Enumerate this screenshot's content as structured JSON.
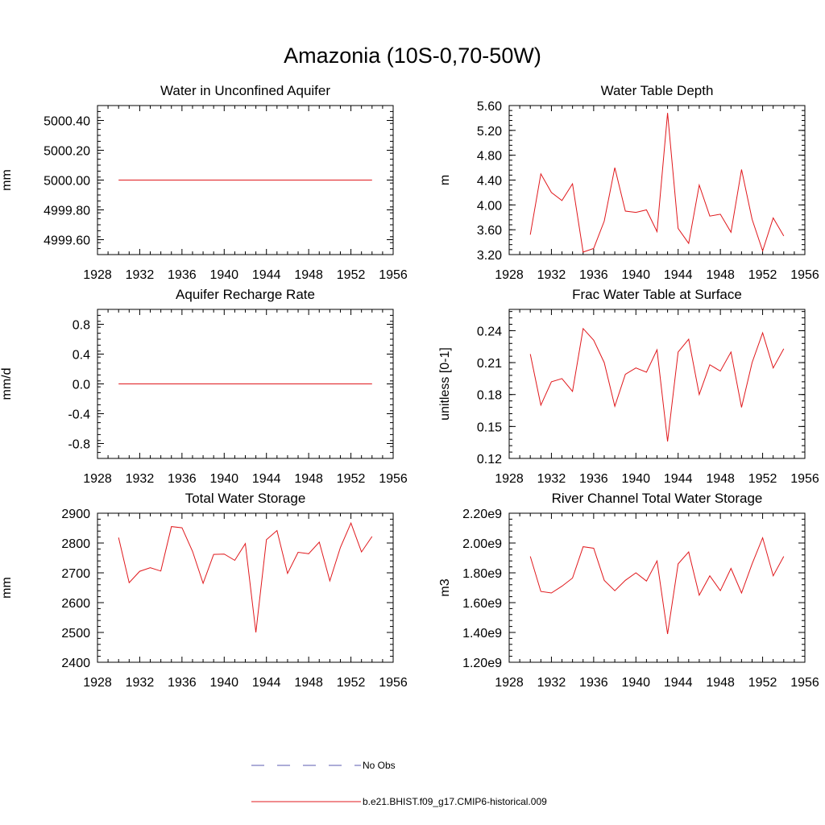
{
  "figure": {
    "title": "Amazonia (10S-0,70-50W)"
  },
  "legend": [
    {
      "label": "No Obs",
      "color": "#5b5bb0",
      "dash": true
    },
    {
      "label": "b.e21.BHIST.f09_g17.CMIP6-historical.009",
      "color": "#e0181c",
      "dash": false
    }
  ],
  "chart_data": [
    {
      "type": "line",
      "title": "Water in Unconfined Aquifer",
      "ylabel": "mm",
      "xlim": [
        1928,
        1956
      ],
      "ylim": [
        4999.5,
        5000.5
      ],
      "xticks": [
        1928,
        1932,
        1936,
        1940,
        1944,
        1948,
        1952,
        1956
      ],
      "yticks": [
        4999.6,
        4999.8,
        5000.0,
        5000.2,
        5000.4
      ],
      "ytick_labels": [
        "4999.60",
        "4999.80",
        "5000.00",
        "5000.20",
        "5000.40"
      ],
      "x": [
        1930,
        1931,
        1932,
        1933,
        1934,
        1935,
        1936,
        1937,
        1938,
        1939,
        1940,
        1941,
        1942,
        1943,
        1944,
        1945,
        1946,
        1947,
        1948,
        1949,
        1950,
        1951,
        1952,
        1953,
        1954
      ],
      "series": [
        {
          "name": "b.e21.BHIST.f09_g17.CMIP6-historical.009",
          "values": [
            5000,
            5000,
            5000,
            5000,
            5000,
            5000,
            5000,
            5000,
            5000,
            5000,
            5000,
            5000,
            5000,
            5000,
            5000,
            5000,
            5000,
            5000,
            5000,
            5000,
            5000,
            5000,
            5000,
            5000,
            5000
          ]
        }
      ]
    },
    {
      "type": "line",
      "title": "Water Table Depth",
      "ylabel": "m",
      "xlim": [
        1928,
        1956
      ],
      "ylim": [
        3.2,
        5.6
      ],
      "xticks": [
        1928,
        1932,
        1936,
        1940,
        1944,
        1948,
        1952,
        1956
      ],
      "yticks": [
        3.2,
        3.6,
        4.0,
        4.4,
        4.8,
        5.2,
        5.6
      ],
      "ytick_labels": [
        "3.20",
        "3.60",
        "4.00",
        "4.40",
        "4.80",
        "5.20",
        "5.60"
      ],
      "x": [
        1930,
        1931,
        1932,
        1933,
        1934,
        1935,
        1936,
        1937,
        1938,
        1939,
        1940,
        1941,
        1942,
        1943,
        1944,
        1945,
        1946,
        1947,
        1948,
        1949,
        1950,
        1951,
        1952,
        1953,
        1954
      ],
      "series": [
        {
          "name": "b.e21.BHIST.f09_g17.CMIP6-historical.009",
          "values": [
            3.52,
            4.5,
            4.2,
            4.07,
            4.34,
            3.24,
            3.3,
            3.74,
            4.6,
            3.9,
            3.88,
            3.92,
            3.57,
            5.48,
            3.62,
            3.38,
            4.32,
            3.82,
            3.85,
            3.56,
            4.57,
            3.77,
            3.26,
            3.79,
            3.5
          ]
        }
      ]
    },
    {
      "type": "line",
      "title": "Aquifer Recharge Rate",
      "ylabel": "mm/d",
      "xlim": [
        1928,
        1956
      ],
      "ylim": [
        -1.0,
        1.0
      ],
      "xticks": [
        1928,
        1932,
        1936,
        1940,
        1944,
        1948,
        1952,
        1956
      ],
      "yticks": [
        -0.8,
        -0.4,
        0.0,
        0.4,
        0.8
      ],
      "ytick_labels": [
        "-0.8",
        "-0.4",
        "0.0",
        "0.4",
        "0.8"
      ],
      "x": [
        1930,
        1931,
        1932,
        1933,
        1934,
        1935,
        1936,
        1937,
        1938,
        1939,
        1940,
        1941,
        1942,
        1943,
        1944,
        1945,
        1946,
        1947,
        1948,
        1949,
        1950,
        1951,
        1952,
        1953,
        1954
      ],
      "series": [
        {
          "name": "b.e21.BHIST.f09_g17.CMIP6-historical.009",
          "values": [
            0,
            0,
            0,
            0,
            0,
            0,
            0,
            0,
            0,
            0,
            0,
            0,
            0,
            0,
            0,
            0,
            0,
            0,
            0,
            0,
            0,
            0,
            0,
            0,
            0
          ]
        }
      ]
    },
    {
      "type": "line",
      "title": "Frac Water Table at Surface",
      "ylabel": "unitless [0-1]",
      "xlim": [
        1928,
        1956
      ],
      "ylim": [
        0.12,
        0.26
      ],
      "xticks": [
        1928,
        1932,
        1936,
        1940,
        1944,
        1948,
        1952,
        1956
      ],
      "yticks": [
        0.12,
        0.15,
        0.18,
        0.21,
        0.24
      ],
      "ytick_labels": [
        "0.12",
        "0.15",
        "0.18",
        "0.21",
        "0.24"
      ],
      "x": [
        1930,
        1931,
        1932,
        1933,
        1934,
        1935,
        1936,
        1937,
        1938,
        1939,
        1940,
        1941,
        1942,
        1943,
        1944,
        1945,
        1946,
        1947,
        1948,
        1949,
        1950,
        1951,
        1952,
        1953,
        1954
      ],
      "series": [
        {
          "name": "b.e21.BHIST.f09_g17.CMIP6-historical.009",
          "values": [
            0.218,
            0.17,
            0.192,
            0.195,
            0.183,
            0.242,
            0.231,
            0.21,
            0.169,
            0.199,
            0.205,
            0.201,
            0.222,
            0.136,
            0.22,
            0.232,
            0.18,
            0.208,
            0.202,
            0.22,
            0.168,
            0.21,
            0.238,
            0.205,
            0.223
          ]
        }
      ]
    },
    {
      "type": "line",
      "title": "Total Water Storage",
      "ylabel": "mm",
      "xlim": [
        1928,
        1956
      ],
      "ylim": [
        2400,
        2900
      ],
      "xticks": [
        1928,
        1932,
        1936,
        1940,
        1944,
        1948,
        1952,
        1956
      ],
      "yticks": [
        2400,
        2500,
        2600,
        2700,
        2800,
        2900
      ],
      "ytick_labels": [
        "2400",
        "2500",
        "2600",
        "2700",
        "2800",
        "2900"
      ],
      "x": [
        1930,
        1931,
        1932,
        1933,
        1934,
        1935,
        1936,
        1937,
        1938,
        1939,
        1940,
        1941,
        1942,
        1943,
        1944,
        1945,
        1946,
        1947,
        1948,
        1949,
        1950,
        1951,
        1952,
        1953,
        1954
      ],
      "series": [
        {
          "name": "b.e21.BHIST.f09_g17.CMIP6-historical.009",
          "values": [
            2818,
            2667,
            2705,
            2717,
            2706,
            2855,
            2851,
            2772,
            2665,
            2762,
            2763,
            2742,
            2798,
            2500,
            2811,
            2842,
            2698,
            2769,
            2764,
            2803,
            2673,
            2785,
            2867,
            2770,
            2822
          ]
        }
      ]
    },
    {
      "type": "line",
      "title": "River Channel Total Water Storage",
      "ylabel": "m3",
      "xlim": [
        1928,
        1956
      ],
      "ylim": [
        1200000000.0,
        2200000000.0
      ],
      "xticks": [
        1928,
        1932,
        1936,
        1940,
        1944,
        1948,
        1952,
        1956
      ],
      "yticks": [
        1200000000.0,
        1400000000.0,
        1600000000.0,
        1800000000.0,
        2000000000.0,
        2200000000.0
      ],
      "ytick_labels": [
        "1.20e9",
        "1.40e9",
        "1.60e9",
        "1.80e9",
        "2.00e9",
        "2.20e9"
      ],
      "x": [
        1930,
        1931,
        1932,
        1933,
        1934,
        1935,
        1936,
        1937,
        1938,
        1939,
        1940,
        1941,
        1942,
        1943,
        1944,
        1945,
        1946,
        1947,
        1948,
        1949,
        1950,
        1951,
        1952,
        1953,
        1954
      ],
      "series": [
        {
          "name": "b.e21.BHIST.f09_g17.CMIP6-historical.009",
          "values": [
            1910000000.0,
            1675000000.0,
            1665000000.0,
            1710000000.0,
            1765000000.0,
            1975000000.0,
            1965000000.0,
            1750000000.0,
            1680000000.0,
            1750000000.0,
            1800000000.0,
            1745000000.0,
            1880000000.0,
            1390000000.0,
            1860000000.0,
            1940000000.0,
            1650000000.0,
            1780000000.0,
            1680000000.0,
            1830000000.0,
            1665000000.0,
            1860000000.0,
            2035000000.0,
            1780000000.0,
            1910000000.0
          ]
        }
      ]
    }
  ]
}
